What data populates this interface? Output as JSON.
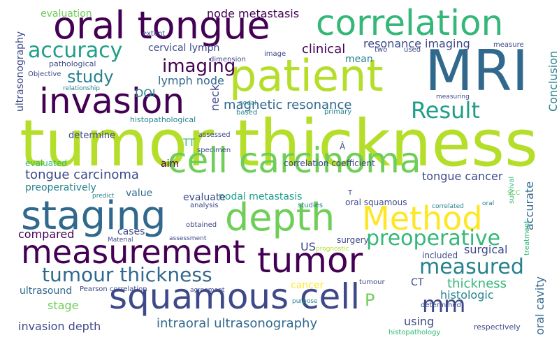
{
  "words": [
    {
      "text": "tumor thickness",
      "color": "#b5de2b"
    },
    {
      "text": "MRI",
      "color": "#31688e"
    },
    {
      "text": "patient",
      "color": "#b5de2b"
    },
    {
      "text": "oral tongue",
      "color": "#440154"
    },
    {
      "text": "correlation",
      "color": "#35b779"
    },
    {
      "text": "invasion",
      "color": "#440154"
    },
    {
      "text": "cell carcinoma",
      "color": "#6ece58"
    },
    {
      "text": "staging",
      "color": "#31688e"
    },
    {
      "text": "depth",
      "color": "#6ece58"
    },
    {
      "text": "Method",
      "color": "#fde725"
    },
    {
      "text": "measurement",
      "color": "#440154"
    },
    {
      "text": "tumor",
      "color": "#440154"
    },
    {
      "text": "squamous cell",
      "color": "#3e4989"
    },
    {
      "text": "Result",
      "color": "#1f9e89"
    },
    {
      "text": "tumour thickness",
      "color": "#31688e"
    },
    {
      "text": "preoperative",
      "color": "#35b779"
    },
    {
      "text": "measured",
      "color": "#26828e"
    },
    {
      "text": "mm",
      "color": "#3e4989"
    },
    {
      "text": "accuracy",
      "color": "#1f9e89"
    },
    {
      "text": "imaging",
      "color": "#440154"
    },
    {
      "text": "study",
      "color": "#26828e"
    },
    {
      "text": "magnetic resonance",
      "color": "#31688e"
    },
    {
      "text": "tongue carcinoma",
      "color": "#3e4989"
    },
    {
      "text": "tongue cancer",
      "color": "#3e4989"
    },
    {
      "text": "intraoral ultrasonography",
      "color": "#31688e"
    },
    {
      "text": "invasion depth",
      "color": "#3e4989"
    },
    {
      "text": "thickness",
      "color": "#35b779"
    },
    {
      "text": "clinical",
      "color": "#440154"
    },
    {
      "text": "resonance imaging",
      "color": "#3e4989"
    },
    {
      "text": "node metastasis",
      "color": "#440154"
    },
    {
      "text": "lymph node",
      "color": "#31688e"
    },
    {
      "text": "DOI",
      "color": "#26828e"
    },
    {
      "text": "cervical lymph",
      "color": "#3e4989"
    },
    {
      "text": "evaluation",
      "color": "#6ece58"
    },
    {
      "text": "preoperatively",
      "color": "#26828e"
    },
    {
      "text": "nodal metastasis",
      "color": "#1f9e89"
    },
    {
      "text": "evaluate",
      "color": "#3e4989"
    },
    {
      "text": "compared",
      "color": "#440154"
    },
    {
      "text": "surgical",
      "color": "#3e4989"
    },
    {
      "text": "histologic",
      "color": "#26828e"
    },
    {
      "text": "using",
      "color": "#3e4989"
    },
    {
      "text": "stage",
      "color": "#6ece58"
    },
    {
      "text": "accurate",
      "color": "#31688e"
    },
    {
      "text": "oral cavity",
      "color": "#31688e"
    },
    {
      "text": "Conclusion",
      "color": "#26828e"
    },
    {
      "text": "neck",
      "color": "#3e4989"
    },
    {
      "text": "value",
      "color": "#31688e"
    },
    {
      "text": "cases",
      "color": "#3e4989"
    },
    {
      "text": "ultrasonography",
      "color": "#3e4989"
    },
    {
      "text": "mean",
      "color": "#26828e"
    },
    {
      "text": "cancer",
      "color": "#fde725"
    },
    {
      "text": "US",
      "color": "#3e4989"
    },
    {
      "text": "CT",
      "color": "#3e4989"
    },
    {
      "text": "TT",
      "color": "#35b779"
    },
    {
      "text": "P",
      "color": "#6ece58"
    },
    {
      "text": "ultrasound",
      "color": "#31688e"
    },
    {
      "text": "aim",
      "color": "#440154"
    },
    {
      "text": "determine",
      "color": "#3e4989"
    },
    {
      "text": "evaluated",
      "color": "#35b779"
    },
    {
      "text": "correlation coefficient",
      "color": "#3e4989"
    },
    {
      "text": "oral squamous",
      "color": "#3e4989"
    },
    {
      "text": "surgery",
      "color": "#3e4989"
    },
    {
      "text": "included",
      "color": "#3e4989"
    },
    {
      "text": "histopathological",
      "color": "#26828e"
    },
    {
      "text": "pathological",
      "color": "#3e4989"
    },
    {
      "text": "extent",
      "color": "#3e4989"
    },
    {
      "text": "dimension",
      "color": "#3e4989"
    },
    {
      "text": "image",
      "color": "#3e4989"
    },
    {
      "text": "two",
      "color": "#3e4989"
    },
    {
      "text": "used",
      "color": "#3e4989"
    },
    {
      "text": "measure",
      "color": "#3e4989"
    },
    {
      "text": "Objective",
      "color": "#3e4989"
    },
    {
      "text": "relationship",
      "color": "#26828e"
    },
    {
      "text": "based",
      "color": "#26828e"
    },
    {
      "text": "primary",
      "color": "#26828e"
    },
    {
      "text": "nodal",
      "color": "#26828e"
    },
    {
      "text": "measuring",
      "color": "#3e4989"
    },
    {
      "text": "assessed",
      "color": "#3e4989"
    },
    {
      "text": "specimen",
      "color": "#3e4989"
    },
    {
      "text": "Â",
      "color": "#3e4989"
    },
    {
      "text": "predict",
      "color": "#26828e"
    },
    {
      "text": "analysis",
      "color": "#3e4989"
    },
    {
      "text": "studies",
      "color": "#26828e"
    },
    {
      "text": "T",
      "color": "#3e4989"
    },
    {
      "text": "obtained",
      "color": "#3e4989"
    },
    {
      "text": "assessment",
      "color": "#3e4989"
    },
    {
      "text": "Material",
      "color": "#3e4989"
    },
    {
      "text": "prognostic",
      "color": "#b5de2b"
    },
    {
      "text": "tumour",
      "color": "#3e4989"
    },
    {
      "text": "Pearson correlation",
      "color": "#3e4989"
    },
    {
      "text": "agreement",
      "color": "#3e4989"
    },
    {
      "text": "purpose",
      "color": "#26828e"
    },
    {
      "text": "determined",
      "color": "#3e4989"
    },
    {
      "text": "histopathology",
      "color": "#35b779"
    },
    {
      "text": "respectively",
      "color": "#3e4989"
    },
    {
      "text": "survival",
      "color": "#35b779"
    },
    {
      "text": "SCC",
      "color": "#6ece58"
    },
    {
      "text": "correlated",
      "color": "#26828e"
    },
    {
      "text": "oral",
      "color": "#26828e"
    },
    {
      "text": "treatment",
      "color": "#35b779"
    }
  ]
}
